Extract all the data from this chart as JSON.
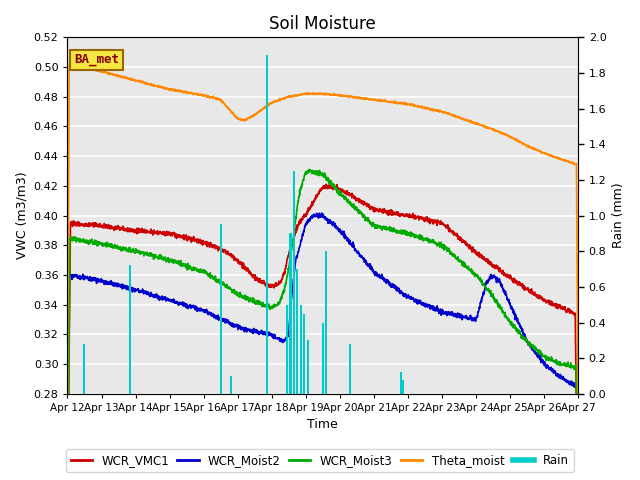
{
  "title": "Soil Moisture",
  "xlabel": "Time",
  "ylabel_left": "VWC (m3/m3)",
  "ylabel_right": "Rain (mm)",
  "xlim_days": [
    0,
    15
  ],
  "ylim_left": [
    0.28,
    0.52
  ],
  "ylim_right": [
    0.0,
    2.0
  ],
  "x_tick_labels": [
    "Apr 12",
    "Apr 13",
    "Apr 14",
    "Apr 15",
    "Apr 16",
    "Apr 17",
    "Apr 18",
    "Apr 19",
    "Apr 20",
    "Apr 21",
    "Apr 22",
    "Apr 23",
    "Apr 24",
    "Apr 25",
    "Apr 26",
    "Apr 27"
  ],
  "axes_bg_color": "#e8e8e8",
  "legend_label": "BA_met",
  "series_colors": {
    "WCR_VMC1": "#cc0000",
    "WCR_Moist2": "#0000cc",
    "WCR_Moist3": "#00aa00",
    "Theta_moist": "#ff8800",
    "Rain": "#00cccc"
  },
  "grid_color": "#ffffff",
  "title_fontsize": 12,
  "rain_times": [
    0.48,
    1.85,
    4.5,
    4.8,
    5.85,
    6.45,
    6.55,
    6.65,
    6.75,
    6.85,
    6.95,
    7.05,
    7.5,
    7.6,
    8.3,
    9.8,
    9.85
  ],
  "rain_heights": [
    0.28,
    0.72,
    0.95,
    0.1,
    1.9,
    0.5,
    0.9,
    1.25,
    0.7,
    0.5,
    0.45,
    0.3,
    0.4,
    0.8,
    0.28,
    0.12,
    0.08
  ]
}
